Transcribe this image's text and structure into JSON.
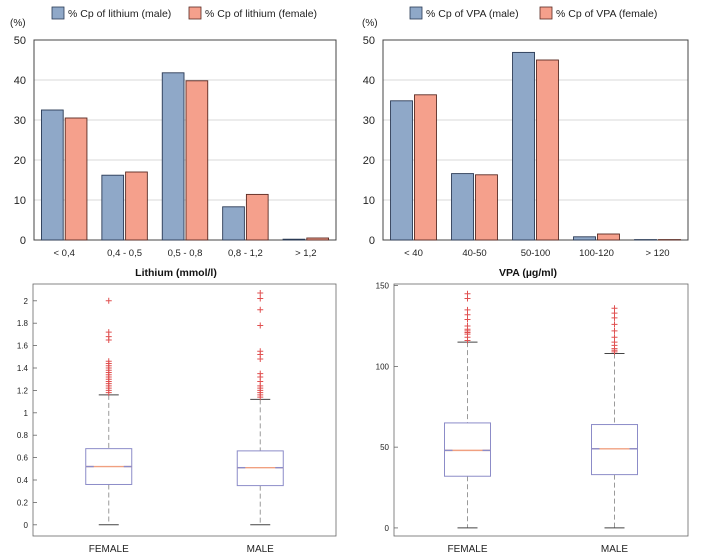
{
  "colors": {
    "male": "#8fa8c8",
    "female": "#f5a08c",
    "box": "#8c8cc8",
    "whisker": "#9a9a9a",
    "outlier": "#e05050",
    "median": "#f0a080",
    "grid": "#d8d8d8",
    "axis": "#333333"
  },
  "chart_data": [
    {
      "type": "bar",
      "ylabel": "(%)",
      "ylim": [
        0,
        50
      ],
      "yticks": [
        0,
        10,
        20,
        30,
        40,
        50
      ],
      "categories": [
        "< 0,4",
        "0,4 - 0,5",
        "0,5 - 0,8",
        "0,8 - 1,2",
        "> 1,2"
      ],
      "series": [
        {
          "name": "% Cp of lithium (male)",
          "color_key": "male",
          "values": [
            32.5,
            16.2,
            41.8,
            8.3,
            0.2
          ]
        },
        {
          "name": "% Cp of lithium (female)",
          "color_key": "female",
          "values": [
            30.5,
            17.0,
            39.8,
            11.4,
            0.5
          ]
        }
      ],
      "legend_position": "top"
    },
    {
      "type": "bar",
      "ylabel": "(%)",
      "ylim": [
        0,
        50
      ],
      "yticks": [
        0,
        10,
        20,
        30,
        40,
        50
      ],
      "categories": [
        "< 40",
        "40-50",
        "50-100",
        "100-120",
        "> 120"
      ],
      "series": [
        {
          "name": "% Cp of VPA (male)",
          "color_key": "male",
          "values": [
            34.8,
            16.6,
            46.9,
            0.8,
            0.1
          ]
        },
        {
          "name": "% Cp of VPA (female)",
          "color_key": "female",
          "values": [
            36.3,
            16.3,
            45.0,
            1.5,
            0.1
          ]
        }
      ],
      "legend_position": "top"
    },
    {
      "type": "boxplot",
      "title": "Lithium (mmol/l)",
      "ylim": [
        -0.1,
        2.15
      ],
      "yticks": [
        0,
        0.2,
        0.4,
        0.6,
        0.8,
        1,
        1.2,
        1.4,
        1.6,
        1.8,
        2
      ],
      "categories": [
        "FEMALE",
        "MALE"
      ],
      "boxes": [
        {
          "min": 0,
          "q1": 0.36,
          "median": 0.52,
          "q3": 0.68,
          "max": 1.16,
          "outliers": [
            1.18,
            1.2,
            1.22,
            1.24,
            1.26,
            1.28,
            1.3,
            1.32,
            1.34,
            1.36,
            1.38,
            1.4,
            1.42,
            1.44,
            1.46,
            1.65,
            1.68,
            1.72,
            2.0
          ]
        },
        {
          "min": 0,
          "q1": 0.35,
          "median": 0.51,
          "q3": 0.66,
          "max": 1.12,
          "outliers": [
            1.14,
            1.16,
            1.18,
            1.2,
            1.22,
            1.24,
            1.28,
            1.32,
            1.35,
            1.48,
            1.52,
            1.55,
            1.78,
            1.92,
            2.02,
            2.07
          ]
        }
      ]
    },
    {
      "type": "boxplot",
      "title": "VPA (µg/ml)",
      "ylim": [
        -5,
        151
      ],
      "yticks": [
        0,
        50,
        100,
        150
      ],
      "categories": [
        "FEMALE",
        "MALE"
      ],
      "boxes": [
        {
          "min": 0,
          "q1": 32,
          "median": 48,
          "q3": 65,
          "max": 115,
          "outliers": [
            116,
            118,
            120,
            121,
            122,
            123,
            125,
            129,
            132,
            135,
            142,
            145
          ]
        },
        {
          "min": 0,
          "q1": 33,
          "median": 49,
          "q3": 64,
          "max": 108,
          "outliers": [
            109,
            110,
            111,
            113,
            115,
            118,
            122,
            126,
            130,
            133,
            136
          ]
        }
      ]
    }
  ]
}
